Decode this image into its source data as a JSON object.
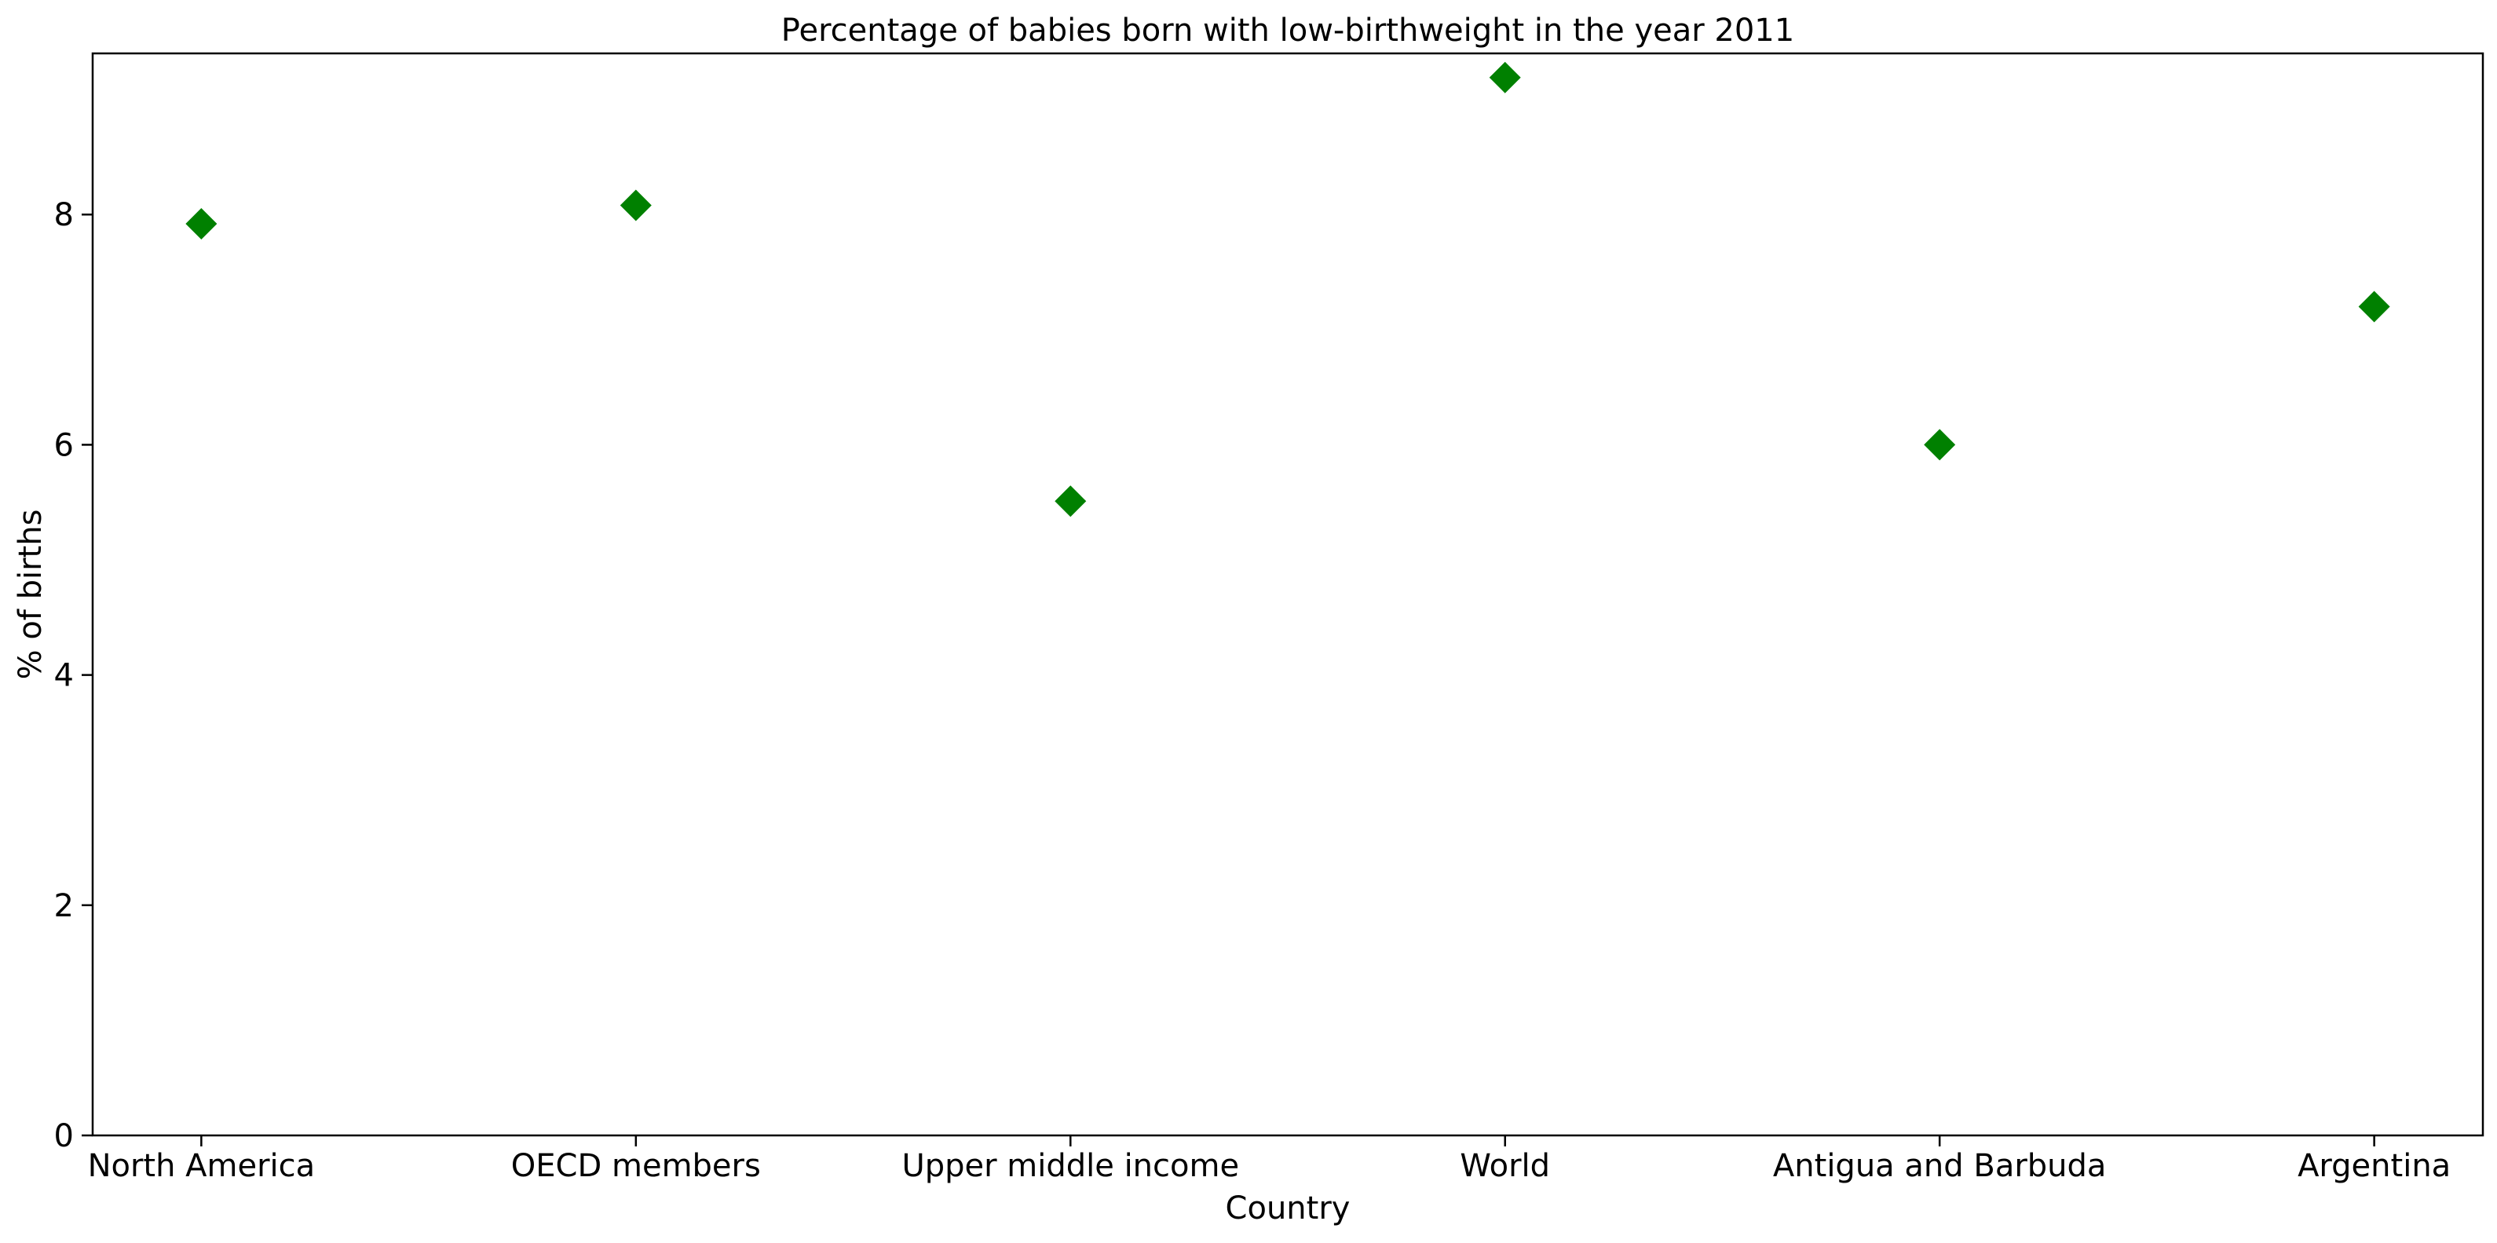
{
  "chart_data": {
    "type": "scatter",
    "title": "Percentage of babies born with low-birthweight in the year 2011",
    "xlabel": "Country",
    "ylabel": "% of births",
    "categories": [
      "North America",
      "OECD members",
      "Upper middle income",
      "World",
      "Antigua and Barbuda",
      "Argentina"
    ],
    "values": [
      7.92,
      8.08,
      5.51,
      9.19,
      6.0,
      7.2
    ],
    "ylim": [
      0,
      9.4
    ],
    "yticks": [
      0,
      2,
      4,
      6,
      8
    ],
    "marker": "diamond",
    "marker_color": "#008000",
    "grid": false,
    "legend": "none"
  }
}
